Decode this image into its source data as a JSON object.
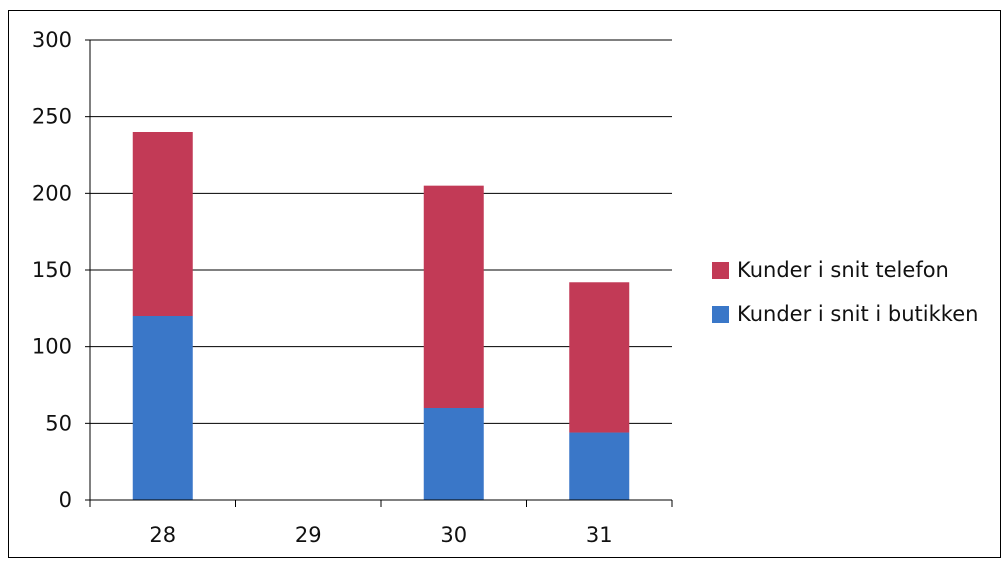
{
  "chart_data": {
    "type": "bar",
    "stacked": true,
    "categories": [
      "28",
      "29",
      "30",
      "31"
    ],
    "series": [
      {
        "name": "Kunder i snit i butikken",
        "color": "#3A77C8",
        "values": [
          120,
          0,
          60,
          44
        ]
      },
      {
        "name": "Kunder i snit telefon",
        "color": "#C23A56",
        "values": [
          120,
          0,
          145,
          98
        ]
      }
    ],
    "legend_order": [
      1,
      0
    ],
    "yticks": [
      "0",
      "50",
      "100",
      "150",
      "200",
      "250",
      "300"
    ],
    "ylim": [
      0,
      300
    ],
    "grid": true,
    "legend_position": "right"
  }
}
